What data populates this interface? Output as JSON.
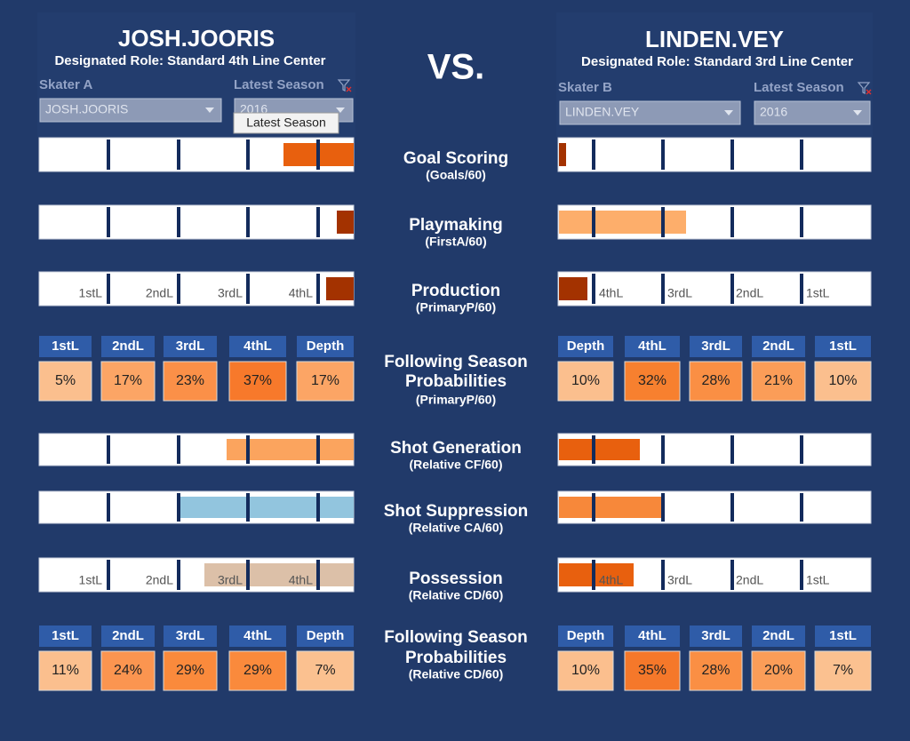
{
  "header": {
    "vs": "VS."
  },
  "skater_a": {
    "name": "JOSH.JOORIS",
    "role": "Designated Role: Standard 4th Line Center",
    "selector_label": "Skater A",
    "selector_value": "JOSH.JOORIS",
    "season_label": "Latest Season",
    "season_value": "2016",
    "tooltip": "Latest Season",
    "production_line_labels": [
      "1stL",
      "2ndL",
      "3rdL",
      "4thL"
    ],
    "possession_line_labels": [
      "1stL",
      "2ndL",
      "3rdL",
      "4thL"
    ],
    "prob_headers_1": [
      "1stL",
      "2ndL",
      "3rdL",
      "4thL",
      "Depth"
    ],
    "production_probs": [
      "5%",
      "17%",
      "23%",
      "37%",
      "17%"
    ],
    "prob_headers_2": [
      "1stL",
      "2ndL",
      "3rdL",
      "4thL",
      "Depth"
    ],
    "possession_probs": [
      "11%",
      "24%",
      "29%",
      "29%",
      "7%"
    ]
  },
  "skater_b": {
    "name": "LINDEN.VEY",
    "role": "Designated Role: Standard 3rd Line Center",
    "selector_label": "Skater B",
    "selector_value": "LINDEN.VEY",
    "season_label": "Latest Season",
    "season_value": "2016",
    "production_line_labels": [
      "4thL",
      "3rdL",
      "2ndL",
      "1stL"
    ],
    "possession_line_labels": [
      "4thL",
      "3rdL",
      "2ndL",
      "1stL"
    ],
    "prob_headers_1": [
      "Depth",
      "4thL",
      "3rdL",
      "2ndL",
      "1stL"
    ],
    "production_probs": [
      "10%",
      "32%",
      "28%",
      "21%",
      "10%"
    ],
    "prob_headers_2": [
      "Depth",
      "4thL",
      "3rdL",
      "2ndL",
      "1stL"
    ],
    "possession_probs": [
      "10%",
      "35%",
      "28%",
      "20%",
      "7%"
    ]
  },
  "metrics": [
    {
      "title": [
        "Goal Scoring"
      ],
      "subtitle": "(Goals/60)"
    },
    {
      "title": [
        "Playmaking"
      ],
      "subtitle": "(FirstA/60)"
    },
    {
      "title": [
        "Production"
      ],
      "subtitle": "(PrimaryP/60)"
    },
    {
      "title": [
        "Following Season",
        "Probabilities"
      ],
      "subtitle": "(PrimaryP/60)"
    },
    {
      "title": [
        "Shot Generation"
      ],
      "subtitle": "(Relative CF/60)"
    },
    {
      "title": [
        "Shot Suppression"
      ],
      "subtitle": "(Relative CA/60)"
    },
    {
      "title": [
        "Possession"
      ],
      "subtitle": "(Relative CD/60)"
    },
    {
      "title": [
        "Following Season",
        "Probabilities"
      ],
      "subtitle": "(Relative CD/60)"
    }
  ]
}
